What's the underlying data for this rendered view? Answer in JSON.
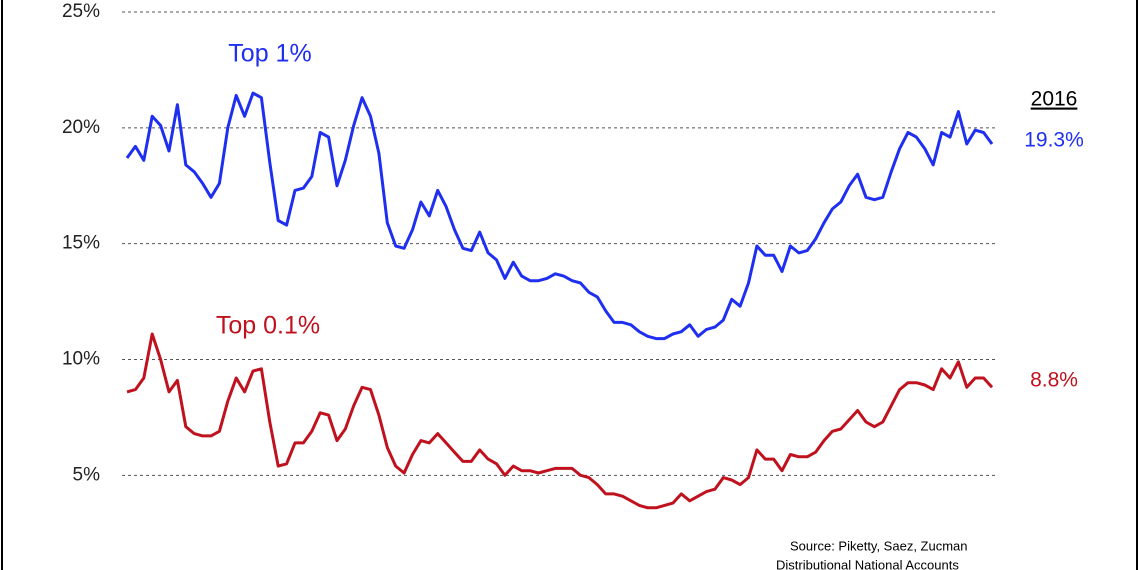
{
  "chart_data": {
    "type": "line",
    "ylim": [
      1,
      25
    ],
    "yticks": [
      {
        "value": 5,
        "label": "5%"
      },
      {
        "value": 10,
        "label": "10%"
      },
      {
        "value": 15,
        "label": "15%"
      },
      {
        "value": 20,
        "label": "20%"
      },
      {
        "value": 25,
        "label": "25%"
      }
    ],
    "grid": true,
    "end_year": "2016",
    "source": [
      "Source:  Piketty, Saez, Zucman",
      "Distributional National Accounts"
    ],
    "series": [
      {
        "name": "Top 1%",
        "color": "#1f2ff0",
        "end_label": "19.3%",
        "values": [
          18.7,
          19.2,
          18.6,
          20.5,
          20.1,
          19.0,
          21.0,
          18.4,
          18.1,
          17.6,
          17.0,
          17.6,
          20.0,
          21.4,
          20.5,
          21.5,
          21.3,
          18.5,
          16.0,
          15.8,
          17.3,
          17.4,
          17.9,
          19.8,
          19.6,
          17.5,
          18.6,
          20.1,
          21.3,
          20.5,
          18.9,
          15.9,
          14.9,
          14.8,
          15.6,
          16.8,
          16.2,
          17.3,
          16.6,
          15.6,
          14.8,
          14.7,
          15.5,
          14.6,
          14.3,
          13.5,
          14.2,
          13.6,
          13.4,
          13.4,
          13.5,
          13.7,
          13.6,
          13.4,
          13.3,
          12.9,
          12.7,
          12.1,
          11.6,
          11.6,
          11.5,
          11.2,
          11.0,
          10.9,
          10.9,
          11.1,
          11.2,
          11.5,
          11.0,
          11.3,
          11.4,
          11.7,
          12.6,
          12.3,
          13.3,
          14.9,
          14.5,
          14.5,
          13.8,
          14.9,
          14.6,
          14.7,
          15.2,
          15.9,
          16.5,
          16.8,
          17.5,
          18.0,
          17.0,
          16.9,
          17.0,
          18.1,
          19.1,
          19.8,
          19.6,
          19.1,
          18.4,
          19.8,
          19.6,
          20.7,
          19.3,
          19.9,
          19.8,
          19.3
        ]
      },
      {
        "name": "Top 0.1%",
        "color": "#c0121e",
        "end_label": "8.8%",
        "values": [
          8.6,
          8.7,
          9.2,
          11.1,
          10.0,
          8.6,
          9.1,
          7.1,
          6.8,
          6.7,
          6.7,
          6.9,
          8.2,
          9.2,
          8.6,
          9.5,
          9.6,
          7.3,
          5.4,
          5.5,
          6.4,
          6.4,
          6.9,
          7.7,
          7.6,
          6.5,
          7.0,
          8.0,
          8.8,
          8.7,
          7.6,
          6.2,
          5.4,
          5.1,
          5.9,
          6.5,
          6.4,
          6.8,
          6.4,
          6.0,
          5.6,
          5.6,
          6.1,
          5.7,
          5.5,
          5.0,
          5.4,
          5.2,
          5.2,
          5.1,
          5.2,
          5.3,
          5.3,
          5.3,
          5.0,
          4.9,
          4.6,
          4.2,
          4.2,
          4.1,
          3.9,
          3.7,
          3.6,
          3.6,
          3.7,
          3.8,
          4.2,
          3.9,
          4.1,
          4.3,
          4.4,
          4.9,
          4.8,
          4.6,
          4.9,
          6.1,
          5.7,
          5.7,
          5.2,
          5.9,
          5.8,
          5.8,
          6.0,
          6.5,
          6.9,
          7.0,
          7.4,
          7.8,
          7.3,
          7.1,
          7.3,
          8.0,
          8.7,
          9.0,
          9.0,
          8.9,
          8.7,
          9.6,
          9.2,
          9.9,
          8.8,
          9.2,
          9.2,
          8.8
        ]
      }
    ]
  }
}
